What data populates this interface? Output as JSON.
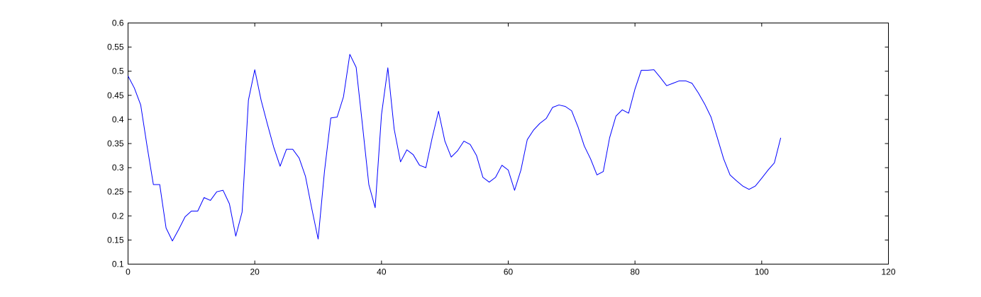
{
  "chart_data": {
    "type": "line",
    "title": "",
    "xlabel": "",
    "ylabel": "",
    "xlim": [
      0,
      120
    ],
    "ylim": [
      0.1,
      0.6
    ],
    "x_ticks": [
      0,
      20,
      40,
      60,
      80,
      100,
      120
    ],
    "x_tick_labels": [
      "0",
      "20",
      "40",
      "60",
      "80",
      "100",
      "120"
    ],
    "y_ticks": [
      0.1,
      0.15,
      0.2,
      0.25,
      0.3,
      0.35,
      0.4,
      0.45,
      0.5,
      0.55,
      0.6
    ],
    "y_tick_labels": [
      "0.1",
      "0.15",
      "0.2",
      "0.25",
      "0.3",
      "0.35",
      "0.4",
      "0.45",
      "0.5",
      "0.55",
      "0.6"
    ],
    "grid": false,
    "legend": "none",
    "colors": {
      "line": "#0000ff",
      "axes": "#000000",
      "background": "#ffffff"
    },
    "series": [
      {
        "x": [
          0,
          1,
          2,
          3,
          4,
          5,
          6,
          7,
          8,
          9,
          10,
          11,
          12,
          13,
          14,
          15,
          16,
          17,
          18,
          19,
          20,
          21,
          22,
          23,
          24,
          25,
          26,
          27,
          28,
          29,
          30,
          31,
          32,
          33,
          34,
          35,
          36,
          37,
          38,
          39,
          40,
          41,
          42,
          43,
          44,
          45,
          46,
          47,
          48,
          49,
          50,
          51,
          52,
          53,
          54,
          55,
          56,
          57,
          58,
          59,
          60,
          61,
          62,
          63,
          64,
          65,
          66,
          67,
          68,
          69,
          70,
          71,
          72,
          73,
          74,
          75,
          76,
          77,
          78,
          79,
          80,
          81,
          82,
          83,
          84,
          85,
          86,
          87,
          88,
          89,
          90,
          91,
          92,
          93,
          94,
          95,
          96,
          97,
          98,
          99,
          100,
          101,
          102,
          103
        ],
        "values": [
          0.49,
          0.465,
          0.43,
          0.345,
          0.265,
          0.265,
          0.175,
          0.148,
          0.172,
          0.198,
          0.21,
          0.21,
          0.238,
          0.232,
          0.25,
          0.253,
          0.225,
          0.158,
          0.208,
          0.44,
          0.503,
          0.44,
          0.39,
          0.342,
          0.303,
          0.338,
          0.338,
          0.32,
          0.282,
          0.215,
          0.152,
          0.292,
          0.403,
          0.405,
          0.447,
          0.535,
          0.508,
          0.388,
          0.265,
          0.217,
          0.41,
          0.507,
          0.38,
          0.312,
          0.337,
          0.327,
          0.305,
          0.3,
          0.362,
          0.417,
          0.355,
          0.322,
          0.335,
          0.355,
          0.348,
          0.325,
          0.28,
          0.27,
          0.28,
          0.305,
          0.295,
          0.253,
          0.295,
          0.358,
          0.378,
          0.392,
          0.402,
          0.425,
          0.43,
          0.427,
          0.418,
          0.385,
          0.345,
          0.318,
          0.285,
          0.292,
          0.362,
          0.407,
          0.42,
          0.413,
          0.463,
          0.502,
          0.502,
          0.503,
          0.487,
          0.47,
          0.475,
          0.48,
          0.48,
          0.475,
          0.455,
          0.432,
          0.405,
          0.362,
          0.318,
          0.285,
          0.273,
          0.262,
          0.255,
          0.262,
          0.278,
          0.295,
          0.31,
          0.362
        ]
      }
    ]
  }
}
